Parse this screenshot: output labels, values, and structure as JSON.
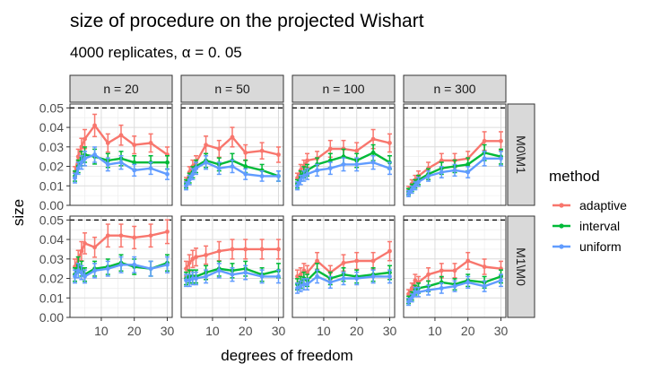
{
  "chart_data": {
    "type": "line",
    "title": "size of procedure on the projected Wishart",
    "subtitle": "4000 replicates, α = 0. 05",
    "xlabel": "degrees of freedom",
    "ylabel": "size",
    "xlim": [
      0.5,
      31.5
    ],
    "ylim": [
      0,
      0.052
    ],
    "x_ticks": [
      10,
      20,
      30
    ],
    "y_ticks": [
      "0.00",
      "0.01",
      "0.02",
      "0.03",
      "0.04",
      "0.05"
    ],
    "reference_line": 0.05,
    "grid": true,
    "legend": {
      "title": "method",
      "position": "right"
    },
    "colors": {
      "adaptive": "#F8766D",
      "interval": "#00BA38",
      "uniform": "#619CFF"
    },
    "columns": [
      "n = 20",
      "n = 50",
      "n = 100",
      "n = 300"
    ],
    "rows": [
      "M0\\M1",
      "M1\\M0"
    ],
    "x": [
      2,
      3,
      4,
      5,
      8,
      12,
      16,
      20,
      25,
      30
    ],
    "panels": [
      {
        "row": 0,
        "col": 0,
        "series": [
          {
            "name": "adaptive",
            "values": [
              0.017,
              0.025,
              0.03,
              0.034,
              0.041,
              0.032,
              0.036,
              0.031,
              0.032,
              0.026
            ]
          },
          {
            "name": "interval",
            "values": [
              0.015,
              0.02,
              0.024,
              0.026,
              0.025,
              0.023,
              0.024,
              0.022,
              0.022,
              0.022
            ]
          },
          {
            "name": "uniform",
            "values": [
              0.014,
              0.019,
              0.022,
              0.024,
              0.026,
              0.021,
              0.022,
              0.018,
              0.019,
              0.016
            ]
          }
        ]
      },
      {
        "row": 0,
        "col": 1,
        "series": [
          {
            "name": "adaptive",
            "values": [
              0.012,
              0.017,
              0.02,
              0.022,
              0.031,
              0.029,
              0.035,
              0.027,
              0.028,
              0.026
            ]
          },
          {
            "name": "interval",
            "values": [
              0.011,
              0.014,
              0.017,
              0.02,
              0.023,
              0.021,
              0.023,
              0.02,
              0.018,
              0.015
            ]
          },
          {
            "name": "uniform",
            "values": [
              0.01,
              0.013,
              0.016,
              0.019,
              0.022,
              0.019,
              0.02,
              0.016,
              0.015,
              0.015
            ]
          }
        ]
      },
      {
        "row": 0,
        "col": 2,
        "series": [
          {
            "name": "adaptive",
            "values": [
              0.014,
              0.018,
              0.02,
              0.023,
              0.024,
              0.029,
              0.029,
              0.028,
              0.034,
              0.032
            ]
          },
          {
            "name": "interval",
            "values": [
              0.011,
              0.015,
              0.017,
              0.018,
              0.021,
              0.023,
              0.025,
              0.023,
              0.027,
              0.022
            ]
          },
          {
            "name": "uniform",
            "values": [
              0.01,
              0.013,
              0.015,
              0.016,
              0.018,
              0.019,
              0.021,
              0.021,
              0.022,
              0.019
            ]
          }
        ]
      },
      {
        "row": 0,
        "col": 3,
        "series": [
          {
            "name": "adaptive",
            "values": [
              0.008,
              0.011,
              0.013,
              0.015,
              0.019,
              0.023,
              0.023,
              0.024,
              0.033,
              0.033
            ]
          },
          {
            "name": "interval",
            "values": [
              0.007,
              0.009,
              0.011,
              0.013,
              0.016,
              0.019,
              0.02,
              0.021,
              0.027,
              0.025
            ]
          },
          {
            "name": "uniform",
            "values": [
              0.006,
              0.008,
              0.01,
              0.012,
              0.015,
              0.017,
              0.018,
              0.017,
              0.024,
              0.024
            ]
          }
        ]
      },
      {
        "row": 1,
        "col": 0,
        "series": [
          {
            "name": "adaptive",
            "values": [
              0.026,
              0.03,
              0.034,
              0.038,
              0.036,
              0.042,
              0.042,
              0.041,
              0.042,
              0.044
            ]
          },
          {
            "name": "interval",
            "values": [
              0.022,
              0.027,
              0.025,
              0.022,
              0.025,
              0.026,
              0.028,
              0.026,
              0.025,
              0.028
            ]
          },
          {
            "name": "uniform",
            "values": [
              0.021,
              0.024,
              0.023,
              0.021,
              0.024,
              0.025,
              0.027,
              0.027,
              0.025,
              0.027
            ]
          }
        ]
      },
      {
        "row": 1,
        "col": 1,
        "series": [
          {
            "name": "adaptive",
            "values": [
              0.025,
              0.028,
              0.03,
              0.031,
              0.032,
              0.034,
              0.035,
              0.035,
              0.035,
              0.035
            ]
          },
          {
            "name": "interval",
            "values": [
              0.02,
              0.021,
              0.021,
              0.021,
              0.023,
              0.025,
              0.024,
              0.025,
              0.022,
              0.024
            ]
          },
          {
            "name": "uniform",
            "values": [
              0.019,
              0.019,
              0.02,
              0.02,
              0.021,
              0.024,
              0.022,
              0.023,
              0.021,
              0.021
            ]
          }
        ]
      },
      {
        "row": 1,
        "col": 2,
        "series": [
          {
            "name": "adaptive",
            "values": [
              0.021,
              0.022,
              0.024,
              0.023,
              0.029,
              0.023,
              0.028,
              0.029,
              0.029,
              0.034
            ]
          },
          {
            "name": "interval",
            "values": [
              0.017,
              0.018,
              0.02,
              0.019,
              0.024,
              0.02,
              0.022,
              0.021,
              0.022,
              0.023
            ]
          },
          {
            "name": "uniform",
            "values": [
              0.015,
              0.016,
              0.017,
              0.017,
              0.021,
              0.018,
              0.02,
              0.02,
              0.021,
              0.021
            ]
          }
        ]
      },
      {
        "row": 1,
        "col": 3,
        "series": [
          {
            "name": "adaptive",
            "values": [
              0.012,
              0.015,
              0.019,
              0.018,
              0.022,
              0.024,
              0.024,
              0.029,
              0.026,
              0.025
            ]
          },
          {
            "name": "interval",
            "values": [
              0.009,
              0.011,
              0.014,
              0.015,
              0.016,
              0.018,
              0.017,
              0.019,
              0.018,
              0.021
            ]
          },
          {
            "name": "uniform",
            "values": [
              0.008,
              0.01,
              0.013,
              0.013,
              0.014,
              0.015,
              0.016,
              0.018,
              0.016,
              0.019
            ]
          }
        ]
      }
    ]
  }
}
